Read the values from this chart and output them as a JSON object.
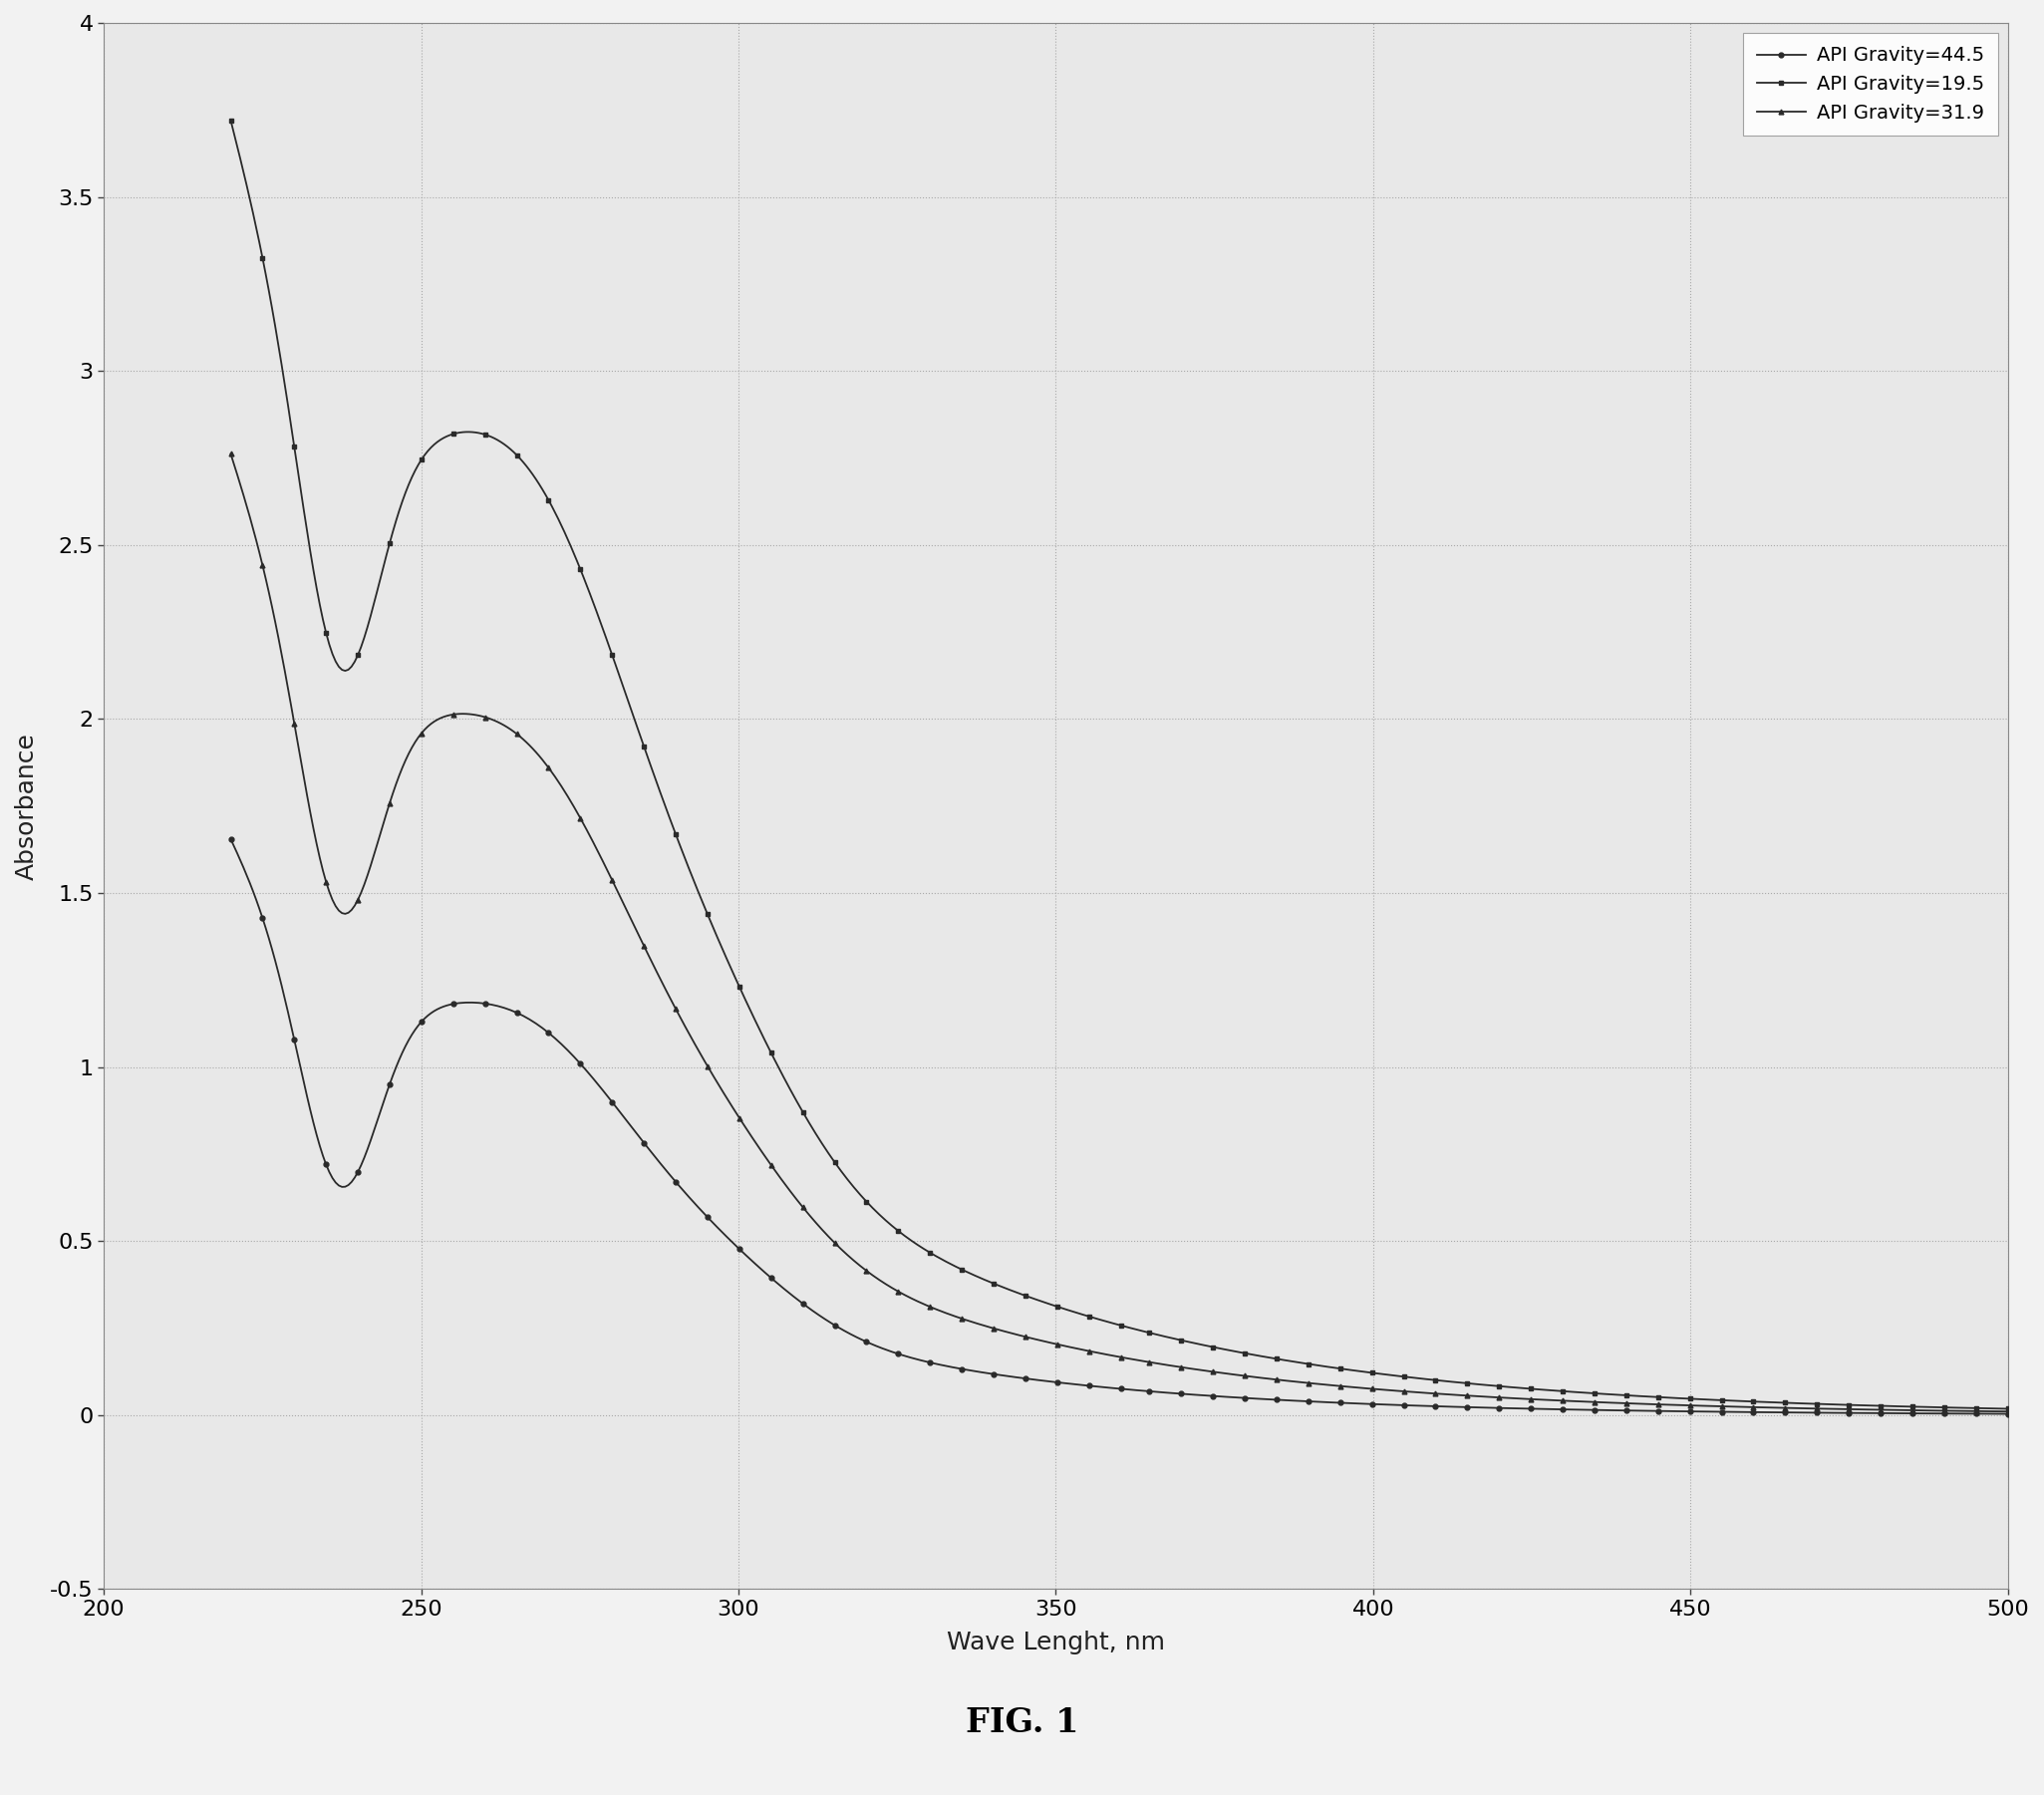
{
  "title": "FIG. 1",
  "xlabel": "Wave Lenght, nm",
  "ylabel": "Absorbance",
  "xlim": [
    200,
    500
  ],
  "ylim": [
    -0.5,
    4.0
  ],
  "yticks": [
    -0.5,
    0,
    0.5,
    1,
    1.5,
    2,
    2.5,
    3,
    3.5,
    4
  ],
  "xticks": [
    200,
    250,
    300,
    350,
    400,
    450,
    500
  ],
  "legend_labels": [
    "API Gravity=44.5",
    "API Gravity=19.5",
    "API Gravity=31.9"
  ],
  "line_color": "#2a2a2a",
  "background_color": "#f0f0f0",
  "plot_bg_color": "#e8e8e8",
  "grid_color": "#b0b0b0"
}
